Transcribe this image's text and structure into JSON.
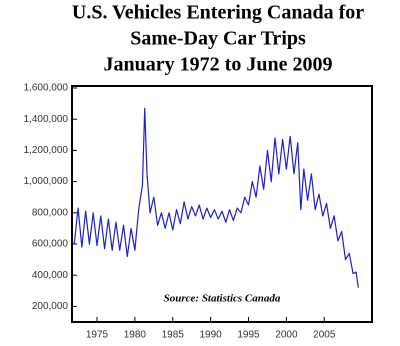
{
  "chart_data": {
    "type": "line",
    "title": [
      "U.S. Vehicles Entering Canada for",
      "Same-Day Car Trips",
      "January 1972 to June 2009"
    ],
    "annotation": "Source: Statistics Canada",
    "color": "#1f1fcc",
    "x": [
      1972.0,
      1972.5,
      1973.0,
      1973.5,
      1974.0,
      1974.5,
      1975.0,
      1975.5,
      1976.0,
      1976.5,
      1977.0,
      1977.5,
      1978.0,
      1978.5,
      1979.0,
      1979.5,
      1980.0,
      1980.5,
      1981.0,
      1981.3,
      1981.6,
      1982.0,
      1982.5,
      1983.0,
      1983.5,
      1984.0,
      1984.5,
      1985.0,
      1985.5,
      1986.0,
      1986.5,
      1987.0,
      1987.5,
      1988.0,
      1988.5,
      1989.0,
      1989.5,
      1990.0,
      1990.5,
      1991.0,
      1991.5,
      1992.0,
      1992.5,
      1993.0,
      1993.5,
      1994.0,
      1994.5,
      1995.0,
      1995.5,
      1996.0,
      1996.5,
      1997.0,
      1997.5,
      1998.0,
      1998.5,
      1999.0,
      1999.5,
      2000.0,
      2000.5,
      2001.0,
      2001.5,
      2001.9,
      2002.3,
      2002.8,
      2003.3,
      2003.8,
      2004.3,
      2004.8,
      2005.3,
      2005.8,
      2006.3,
      2006.8,
      2007.3,
      2007.8,
      2008.3,
      2008.8,
      2009.2,
      2009.5
    ],
    "values": [
      600000,
      830000,
      580000,
      810000,
      600000,
      800000,
      590000,
      780000,
      570000,
      760000,
      560000,
      740000,
      560000,
      720000,
      520000,
      700000,
      560000,
      820000,
      980000,
      1470000,
      1050000,
      800000,
      900000,
      720000,
      800000,
      700000,
      800000,
      690000,
      820000,
      730000,
      870000,
      760000,
      840000,
      780000,
      850000,
      760000,
      830000,
      770000,
      820000,
      760000,
      810000,
      740000,
      820000,
      750000,
      830000,
      800000,
      900000,
      850000,
      1000000,
      900000,
      1100000,
      950000,
      1200000,
      1000000,
      1280000,
      1050000,
      1270000,
      1080000,
      1290000,
      1050000,
      1250000,
      820000,
      1080000,
      880000,
      1050000,
      820000,
      920000,
      780000,
      860000,
      700000,
      780000,
      620000,
      680000,
      500000,
      540000,
      410000,
      420000,
      320000
    ],
    "xlim": [
      1971.7,
      2011.3
    ],
    "xticks": [
      1975,
      1980,
      1985,
      1990,
      1995,
      2000,
      2005
    ],
    "ylim": [
      100000,
      1600000
    ],
    "yticks": [
      {
        "value": 200000,
        "label": "200,000"
      },
      {
        "value": 400000,
        "label": "400,000"
      },
      {
        "value": 600000,
        "label": "600,000"
      },
      {
        "value": 800000,
        "label": "800,000"
      },
      {
        "value": 1000000,
        "label": "1,000,000"
      },
      {
        "value": 1200000,
        "label": "1,200,000"
      },
      {
        "value": 1400000,
        "label": "1,400,000"
      },
      {
        "value": 1600000,
        "label": "1,600,000"
      }
    ]
  }
}
